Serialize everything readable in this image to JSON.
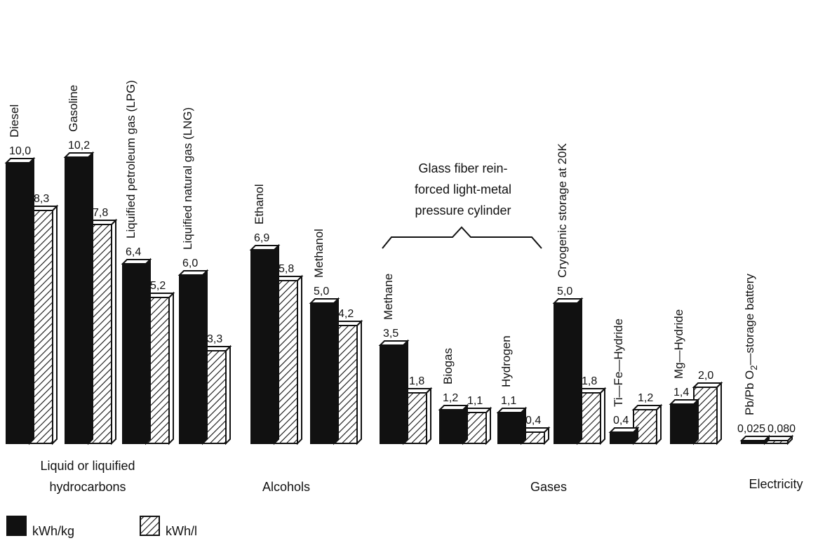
{
  "chart_data": {
    "type": "bar",
    "series": [
      {
        "name": "kWh/kg",
        "values": [
          10.0,
          10.2,
          6.4,
          6.0,
          6.9,
          5.0,
          3.5,
          1.2,
          1.1,
          5.0,
          0.4,
          1.4,
          0.025
        ]
      },
      {
        "name": "kWh/l",
        "values": [
          8.3,
          7.8,
          5.2,
          3.3,
          5.8,
          4.2,
          1.8,
          1.1,
          0.4,
          1.8,
          1.2,
          2.0,
          0.08
        ]
      }
    ],
    "categories": [
      "Diesel",
      "Gasoline",
      "Liquified petroleum gas (LPG)",
      "Liquified natural gas (LNG)",
      "Ethanol",
      "Methanol",
      "Methane",
      "Biogas",
      "Hydrogen",
      "Cryogenic storage at 20K",
      "Ti—Fe—Hydride",
      "Mg—Hydride",
      "Pb/Pb O2—storage battery"
    ],
    "value_labels": [
      [
        "10,0",
        "8,3"
      ],
      [
        "10,2",
        "7,8"
      ],
      [
        "6,4",
        "5,2"
      ],
      [
        "6,0",
        "3,3"
      ],
      [
        "6,9",
        "5,8"
      ],
      [
        "5,0",
        "4,2"
      ],
      [
        "3,5",
        "1,8"
      ],
      [
        "1,2",
        "1,1"
      ],
      [
        "1,1",
        "0,4"
      ],
      [
        "5,0",
        "1,8"
      ],
      [
        "0,4",
        "1,2"
      ],
      [
        "1,4",
        "2,0"
      ],
      [
        "0,025",
        "0,080"
      ]
    ],
    "groups": [
      {
        "lines": [
          "Liquid or liquified",
          "hydrocarbons"
        ]
      },
      {
        "lines": [
          "Alcohols"
        ]
      },
      {
        "lines": [
          "Gases"
        ]
      },
      {
        "lines": [
          "Electricity"
        ]
      }
    ],
    "annotation": {
      "lines": [
        "Glass fiber rein-",
        "forced light-metal",
        "pressure cylinder"
      ]
    },
    "legend": [
      {
        "label": "kWh/kg",
        "style": "solid"
      },
      {
        "label": "kWh/l",
        "style": "hatched"
      }
    ],
    "ylim": [
      0,
      10.2
    ],
    "grid": false,
    "legend_position": "bottom-left"
  }
}
